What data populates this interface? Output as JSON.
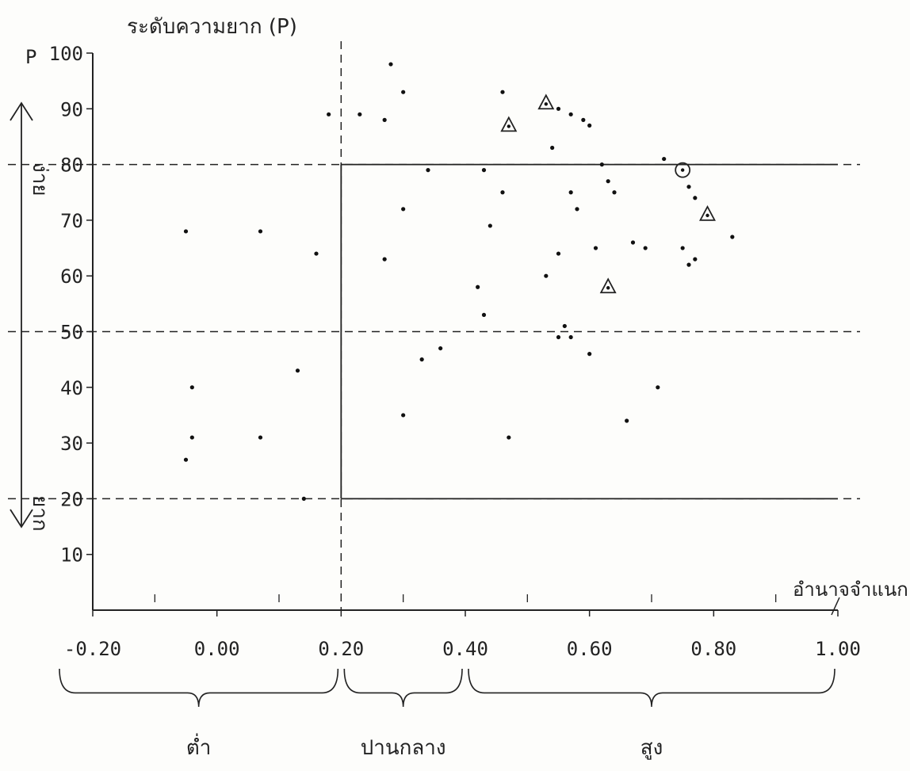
{
  "chart_data": {
    "type": "scatter",
    "ylabel": "ระดับความยาก (P)",
    "y_axis_letter": "P",
    "xlabel": "อำนาจจำแนก",
    "xlim": [
      -0.2,
      1.0
    ],
    "ylim": [
      0,
      100
    ],
    "x_ticks": [
      -0.2,
      0.0,
      0.2,
      0.4,
      0.6,
      0.8,
      1.0
    ],
    "x_tick_labels": [
      "-0.20",
      "0.00",
      "0.20",
      "0.40",
      "0.60",
      "0.80",
      "1.00"
    ],
    "y_ticks": [
      10,
      20,
      30,
      40,
      50,
      60,
      70,
      80,
      90,
      100
    ],
    "y_tick_labels": [
      "10",
      "20",
      "30",
      "40",
      "50",
      "60",
      "70",
      "80",
      "90",
      "100"
    ],
    "grid": false,
    "y_arrow_labels": {
      "top": "ง่าย",
      "bottom": "ยาก"
    },
    "x_group_labels": [
      {
        "label": "ต่ำ",
        "from": -0.2,
        "to": 0.2
      },
      {
        "label": "ปานกลาง",
        "from": 0.2,
        "to": 0.4
      },
      {
        "label": "สูง",
        "from": 0.4,
        "to": 1.0
      }
    ],
    "reference_lines": {
      "dashed_horizontal": [
        80,
        50,
        20
      ],
      "dashed_vertical": [
        0.2
      ],
      "solid_horizontal": [
        {
          "y": 80,
          "x_from": 0.2,
          "x_to": 1.0
        },
        {
          "y": 20,
          "x_from": 0.2,
          "x_to": 1.0
        }
      ],
      "solid_vertical": [
        {
          "x": 0.2,
          "y_from": 20,
          "y_to": 80
        }
      ]
    },
    "points": [
      {
        "x": -0.05,
        "y": 68
      },
      {
        "x": -0.04,
        "y": 40
      },
      {
        "x": -0.04,
        "y": 31
      },
      {
        "x": -0.05,
        "y": 27
      },
      {
        "x": 0.07,
        "y": 68
      },
      {
        "x": 0.07,
        "y": 31
      },
      {
        "x": 0.13,
        "y": 43
      },
      {
        "x": 0.14,
        "y": 20
      },
      {
        "x": 0.16,
        "y": 64
      },
      {
        "x": 0.18,
        "y": 89
      },
      {
        "x": 0.23,
        "y": 89
      },
      {
        "x": 0.27,
        "y": 88
      },
      {
        "x": 0.28,
        "y": 98
      },
      {
        "x": 0.3,
        "y": 93
      },
      {
        "x": 0.3,
        "y": 72
      },
      {
        "x": 0.27,
        "y": 63
      },
      {
        "x": 0.3,
        "y": 35
      },
      {
        "x": 0.34,
        "y": 79
      },
      {
        "x": 0.33,
        "y": 45
      },
      {
        "x": 0.36,
        "y": 47
      },
      {
        "x": 0.42,
        "y": 58
      },
      {
        "x": 0.43,
        "y": 79
      },
      {
        "x": 0.44,
        "y": 69
      },
      {
        "x": 0.43,
        "y": 53
      },
      {
        "x": 0.46,
        "y": 93
      },
      {
        "x": 0.46,
        "y": 75
      },
      {
        "x": 0.47,
        "y": 31
      },
      {
        "x": 0.53,
        "y": 60
      },
      {
        "x": 0.55,
        "y": 64
      },
      {
        "x": 0.55,
        "y": 49
      },
      {
        "x": 0.54,
        "y": 83
      },
      {
        "x": 0.56,
        "y": 51
      },
      {
        "x": 0.57,
        "y": 75
      },
      {
        "x": 0.58,
        "y": 72
      },
      {
        "x": 0.57,
        "y": 49
      },
      {
        "x": 0.6,
        "y": 46
      },
      {
        "x": 0.61,
        "y": 65
      },
      {
        "x": 0.62,
        "y": 80
      },
      {
        "x": 0.63,
        "y": 77
      },
      {
        "x": 0.64,
        "y": 75
      },
      {
        "x": 0.67,
        "y": 66
      },
      {
        "x": 0.69,
        "y": 65
      },
      {
        "x": 0.71,
        "y": 40
      },
      {
        "x": 0.66,
        "y": 34
      },
      {
        "x": 0.55,
        "y": 90
      },
      {
        "x": 0.57,
        "y": 89
      },
      {
        "x": 0.59,
        "y": 88
      },
      {
        "x": 0.6,
        "y": 87
      },
      {
        "x": 0.76,
        "y": 76
      },
      {
        "x": 0.77,
        "y": 74
      },
      {
        "x": 0.75,
        "y": 65
      },
      {
        "x": 0.76,
        "y": 62
      },
      {
        "x": 0.77,
        "y": 63
      },
      {
        "x": 0.83,
        "y": 67
      },
      {
        "x": 0.72,
        "y": 81
      }
    ],
    "triangle_markers": [
      {
        "x": 0.47,
        "y": 87
      },
      {
        "x": 0.53,
        "y": 91
      },
      {
        "x": 0.63,
        "y": 58
      },
      {
        "x": 0.79,
        "y": 71
      }
    ],
    "circle_markers": [
      {
        "x": 0.75,
        "y": 79
      }
    ]
  }
}
